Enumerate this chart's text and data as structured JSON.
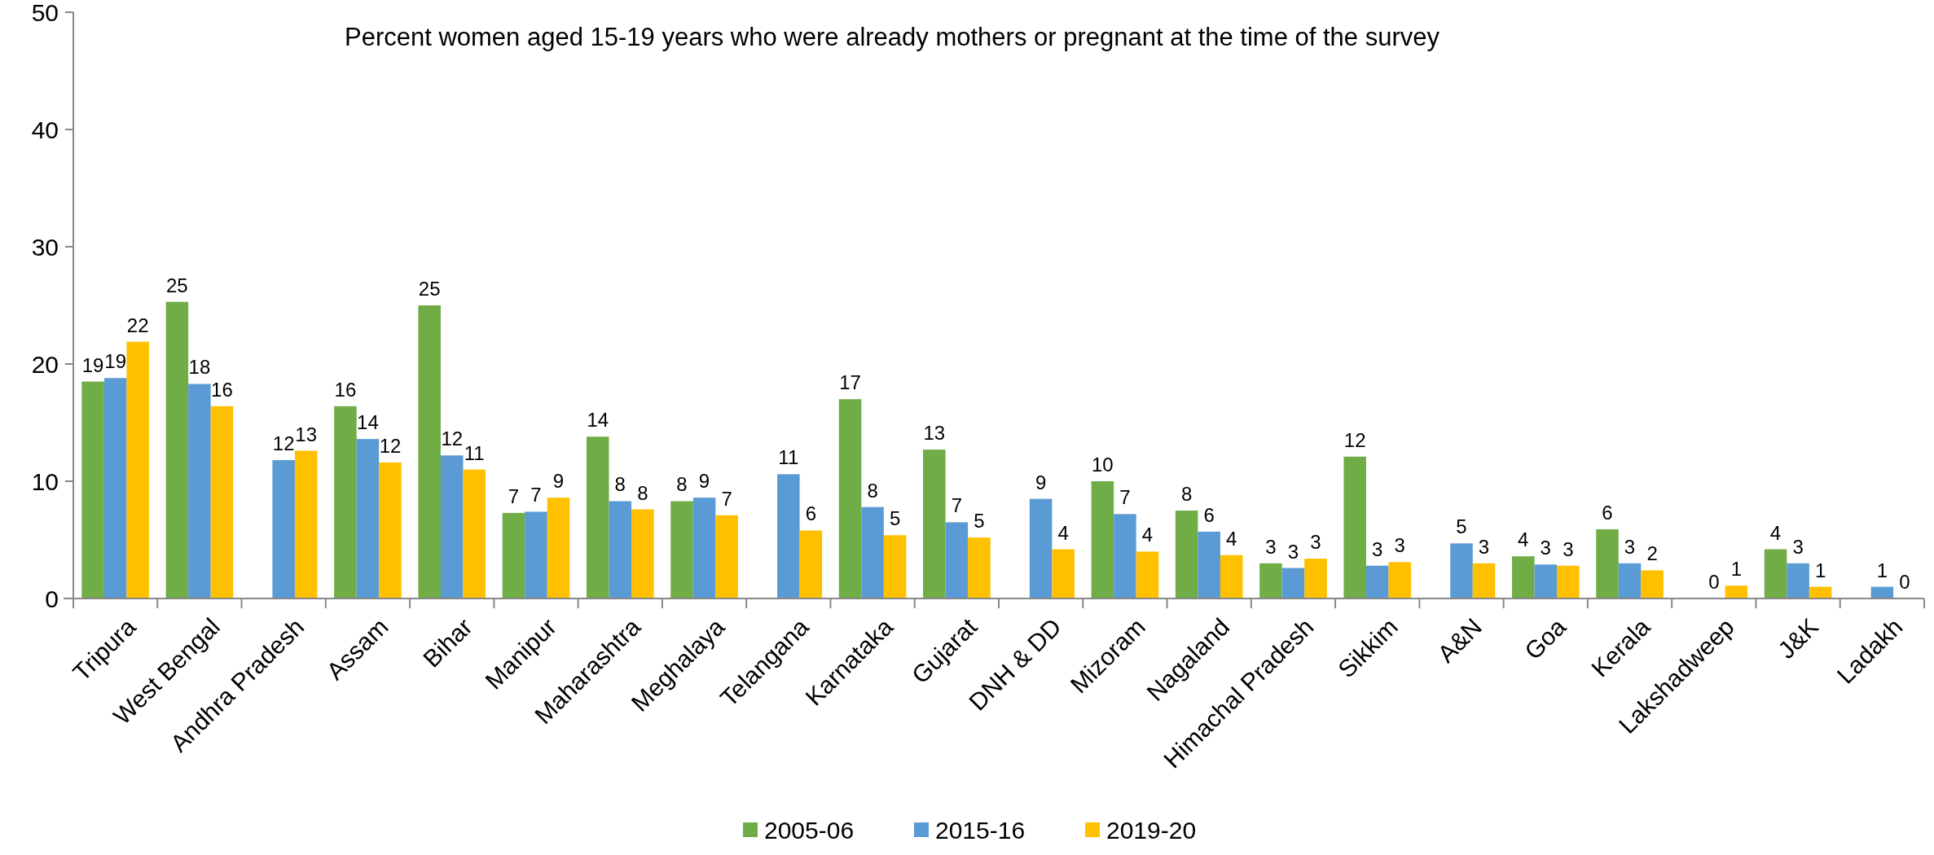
{
  "chart_data": {
    "type": "bar",
    "title": "Percent women aged 15-19 years who were already mothers or pregnant at the time of the survey",
    "categories": [
      "Tripura",
      "West Bengal",
      "Andhra Pradesh",
      "Assam",
      "Bihar",
      "Manipur",
      "Maharashtra",
      "Meghalaya",
      "Telangana",
      "Karnataka",
      "Gujarat",
      "DNH & DD",
      "Mizoram",
      "Nagaland",
      "Himachal Pradesh",
      "Sikkim",
      "A&N",
      "Goa",
      "Kerala",
      "Lakshadweep",
      "J&K",
      "Ladakh"
    ],
    "series": [
      {
        "name": "2005-06",
        "color": "#70ad47",
        "values": [
          18.5,
          25.3,
          null,
          16.4,
          25.0,
          7.3,
          13.8,
          8.3,
          null,
          17.0,
          12.7,
          null,
          10.0,
          7.5,
          3.0,
          12.1,
          null,
          3.6,
          5.9,
          null,
          4.2,
          null
        ],
        "value_labels": [
          "19",
          "25",
          null,
          "16",
          "25",
          "7",
          "14",
          "8",
          null,
          "17",
          "13",
          null,
          "10",
          "8",
          "3",
          "12",
          null,
          "4",
          "6",
          null,
          "4",
          null
        ]
      },
      {
        "name": "2015-16",
        "color": "#5b9bd5",
        "values": [
          18.8,
          18.3,
          11.8,
          13.6,
          12.2,
          7.4,
          8.3,
          8.6,
          10.6,
          7.8,
          6.5,
          8.5,
          7.2,
          5.7,
          2.6,
          2.8,
          4.7,
          2.9,
          3.0,
          0,
          3.0,
          1.0
        ],
        "value_labels": [
          "19",
          "18",
          "12",
          "14",
          "12",
          "7",
          "8",
          "9",
          "11",
          "8",
          "7",
          "9",
          "7",
          "6",
          "3",
          "3",
          "5",
          "3",
          "3",
          "0",
          "3",
          "1"
        ]
      },
      {
        "name": "2019-20",
        "color": "#ffc000",
        "values": [
          21.9,
          16.4,
          12.6,
          11.6,
          11.0,
          8.6,
          7.6,
          7.1,
          5.8,
          5.4,
          5.2,
          4.2,
          4.0,
          3.7,
          3.4,
          3.1,
          3.0,
          2.8,
          2.4,
          1.1,
          1.0,
          0
        ],
        "value_labels": [
          "22",
          "16",
          "13",
          "12",
          "11",
          "9",
          "8",
          "7",
          "6",
          "5",
          "5",
          "4",
          "4",
          "4",
          "3",
          "3",
          "3",
          "3",
          "2",
          "1",
          "1",
          "0"
        ]
      }
    ],
    "ylim": [
      0,
      50
    ],
    "yticks": [
      0,
      10,
      20,
      30,
      40,
      50
    ],
    "legend": "bottom"
  }
}
